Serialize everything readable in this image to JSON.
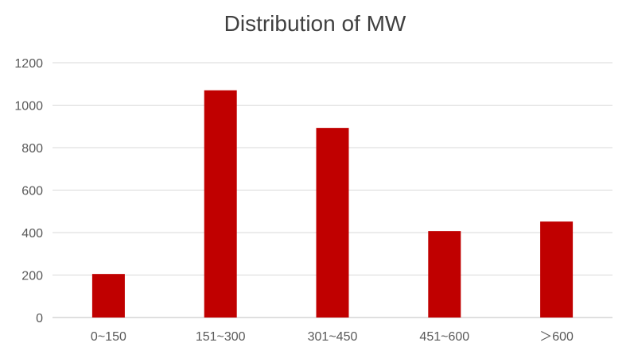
{
  "chart_data": {
    "type": "bar",
    "title": "Distribution of MW",
    "xlabel": "",
    "ylabel": "",
    "categories": [
      "0~150",
      "151~300",
      "301~450",
      "451~600",
      "＞600"
    ],
    "series": [
      {
        "values": [
          205,
          1070,
          893,
          407,
          452
        ]
      }
    ],
    "ylim": [
      0,
      1200
    ],
    "yticks": [
      0,
      200,
      400,
      600,
      800,
      1000,
      1200
    ],
    "bar_color": "#C00000",
    "gridline_color": "#D9D9D9",
    "grid": true,
    "legend": "none"
  }
}
